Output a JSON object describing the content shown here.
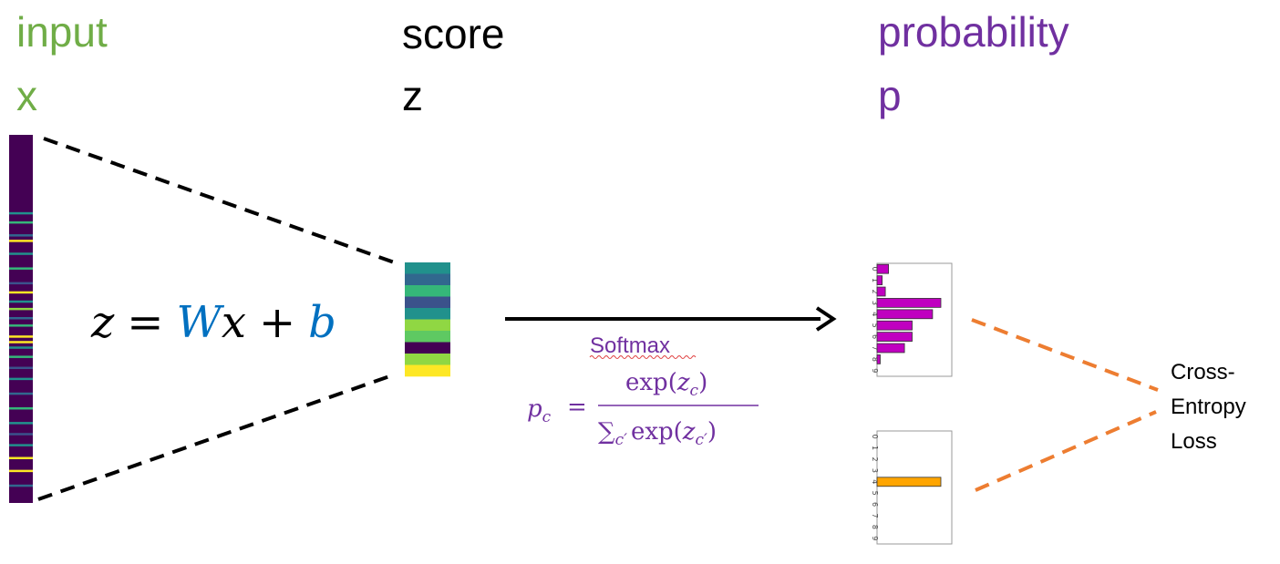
{
  "labels": {
    "input_title": "input",
    "input_var": "x",
    "score_title": "score",
    "score_var": "z",
    "prob_title": "probability",
    "prob_var": "p"
  },
  "equation": {
    "lhs": "z",
    "eq": "=",
    "W": "W",
    "x": "x",
    "plus": "+",
    "b": "b"
  },
  "softmax": {
    "name": "Softmax",
    "p": "p",
    "p_sub": "c",
    "eq": "=",
    "num": "exp(",
    "num_z": "z",
    "num_sub": "c",
    "num_close": ")",
    "den_sum": "∑",
    "den_sum_sub": "c′",
    "den_exp": "exp(",
    "den_z": "z",
    "den_sub": "c′",
    "den_close": ")"
  },
  "loss": {
    "line1": "Cross-",
    "line2": "Entropy",
    "line3": "Loss"
  },
  "colors": {
    "green": "#70ad47",
    "purple": "#7030a0",
    "blue": "#0070c0",
    "orange": "#ed7d31",
    "magenta": "#c000c0",
    "bar_orange": "#ffa500"
  },
  "score_colors": [
    "#21918c",
    "#31688e",
    "#35b779",
    "#3b528b",
    "#21918c",
    "#90d743",
    "#5ec962",
    "#440154",
    "#90d743",
    "#fde725"
  ],
  "input_stripes": [
    {
      "pos": 0.21,
      "color": "#21918c"
    },
    {
      "pos": 0.235,
      "color": "#35b779"
    },
    {
      "pos": 0.27,
      "color": "#31688e"
    },
    {
      "pos": 0.285,
      "color": "#fde725"
    },
    {
      "pos": 0.32,
      "color": "#21918c"
    },
    {
      "pos": 0.36,
      "color": "#35b779"
    },
    {
      "pos": 0.4,
      "color": "#3b528b"
    },
    {
      "pos": 0.425,
      "color": "#fde725"
    },
    {
      "pos": 0.45,
      "color": "#21918c"
    },
    {
      "pos": 0.47,
      "color": "#90d743"
    },
    {
      "pos": 0.495,
      "color": "#31688e"
    },
    {
      "pos": 0.515,
      "color": "#35b779"
    },
    {
      "pos": 0.545,
      "color": "#fde725"
    },
    {
      "pos": 0.56,
      "color": "#fde725"
    },
    {
      "pos": 0.575,
      "color": "#21918c"
    },
    {
      "pos": 0.6,
      "color": "#35b779"
    },
    {
      "pos": 0.63,
      "color": "#3b528b"
    },
    {
      "pos": 0.66,
      "color": "#21918c"
    },
    {
      "pos": 0.7,
      "color": "#31688e"
    },
    {
      "pos": 0.74,
      "color": "#35b779"
    },
    {
      "pos": 0.78,
      "color": "#21918c"
    },
    {
      "pos": 0.81,
      "color": "#3b528b"
    },
    {
      "pos": 0.84,
      "color": "#21918c"
    },
    {
      "pos": 0.875,
      "color": "#fde725"
    },
    {
      "pos": 0.91,
      "color": "#fde725"
    },
    {
      "pos": 0.95,
      "color": "#31688e"
    }
  ],
  "chart_data": [
    {
      "type": "bar",
      "orientation": "horizontal",
      "categories": [
        "0",
        "1",
        "2",
        "3",
        "4",
        "5",
        "6",
        "7",
        "8",
        "9"
      ],
      "values": [
        0.18,
        0.08,
        0.13,
        1.0,
        0.87,
        0.55,
        0.55,
        0.43,
        0.05,
        0.0
      ],
      "color": "#c000c0"
    },
    {
      "type": "bar",
      "orientation": "horizontal",
      "categories": [
        "0",
        "1",
        "2",
        "3",
        "4",
        "5",
        "6",
        "7",
        "8",
        "9"
      ],
      "values": [
        0,
        0,
        0,
        0,
        1.0,
        0,
        0,
        0,
        0,
        0
      ],
      "color": "#ffa500"
    }
  ]
}
